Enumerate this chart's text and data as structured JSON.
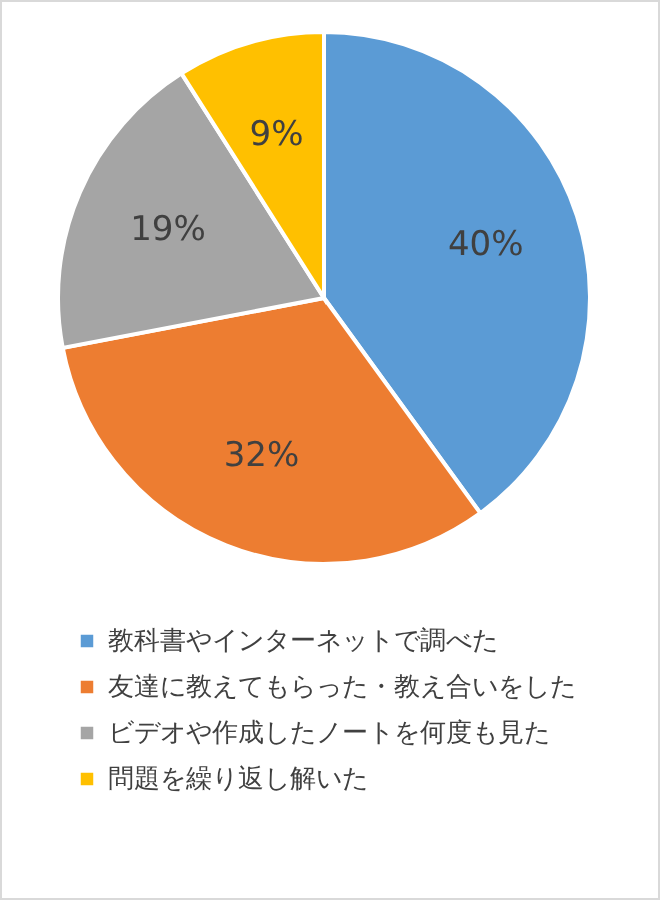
{
  "chart_data": {
    "type": "pie",
    "categories": [
      "教科書やインターネットで調べた",
      "友達に教えてもらった・教え合いをした",
      "ビデオや作成したノートを何度も見た",
      "問題を繰り返し解いた"
    ],
    "values": [
      40,
      32,
      19,
      9
    ],
    "colors": [
      "#5b9bd5",
      "#ed7d31",
      "#a5a5a5",
      "#ffc000"
    ],
    "value_labels": [
      "40%",
      "32%",
      "19%",
      "9%"
    ],
    "legend": "bottom"
  }
}
